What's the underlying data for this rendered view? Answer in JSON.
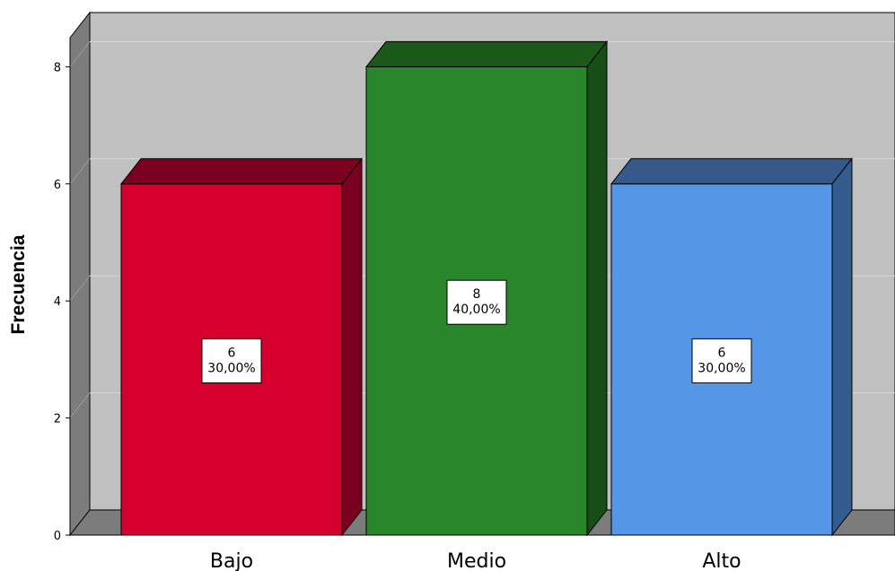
{
  "chart_data": {
    "type": "bar",
    "title": "",
    "xlabel": "",
    "ylabel": "Frecuencia",
    "categories": [
      "Bajo",
      "Medio",
      "Alto"
    ],
    "values": [
      6,
      8,
      6
    ],
    "percent_labels": [
      "30,00%",
      "40,00%",
      "30,00%"
    ],
    "ylim": [
      0,
      8.5
    ],
    "yticks": [
      0,
      2,
      4,
      6,
      8
    ],
    "grid": true,
    "legend": "none",
    "style": "3d",
    "colors": {
      "bar_fronts": [
        "#d6002e",
        "#2a862a",
        "#5596e6"
      ],
      "bar_tops": [
        "#7c0020",
        "#1b5a1b",
        "#35598a"
      ],
      "bar_sides": [
        "#7a0020",
        "#174e17",
        "#355c8e"
      ],
      "plot_background": "#c0c0c0",
      "side_wall": "#7c7c7c",
      "gridline": "#d8d8d8"
    }
  }
}
